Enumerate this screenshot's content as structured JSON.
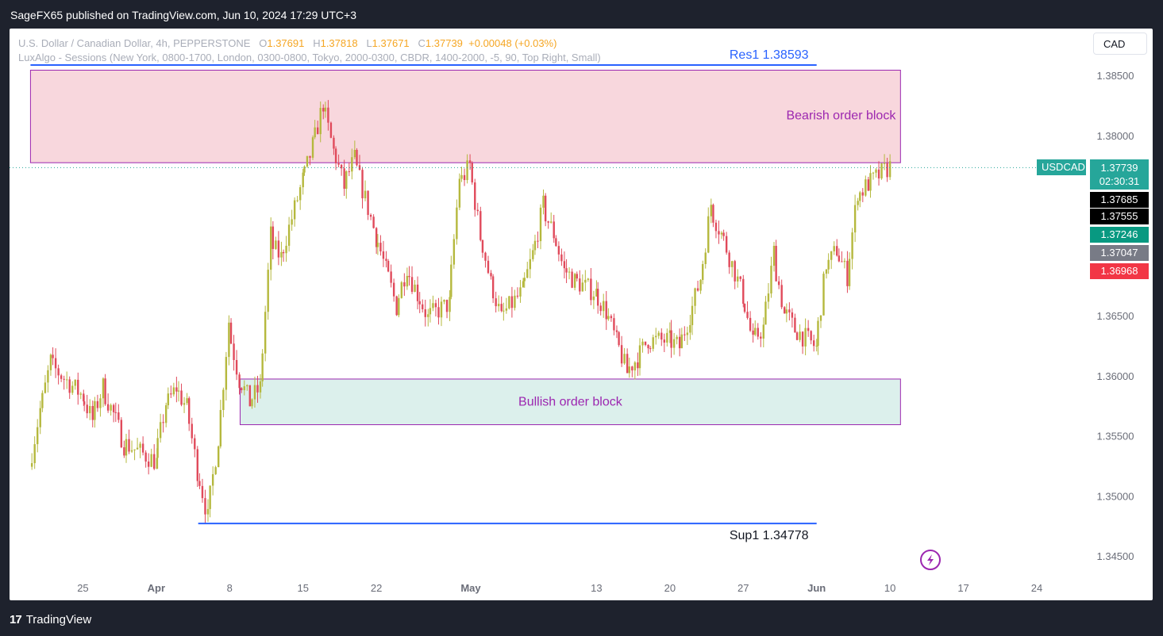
{
  "header": {
    "published": "SageFX65 published on TradingView.com, Jun 10, 2024 17:29 UTC+3"
  },
  "legend": {
    "symbol_line": "U.S. Dollar / Canadian Dollar, 4h, PEPPERSTONE",
    "o_label": "O",
    "o_value": "1.37691",
    "h_label": "H",
    "h_value": "1.37818",
    "l_label": "L",
    "l_value": "1.37671",
    "c_label": "C",
    "c_value": "1.37739",
    "change": "+0.00048 (+0.03%)",
    "indicator_line": "LuxAlgo - Sessions (New York, 0800-1700, London, 0300-0800, Tokyo, 2000-0300, CBDR, 1400-2000, -5, 90, Top Right, Small)"
  },
  "currency_button": "CAD",
  "footer": {
    "brand": "TradingView",
    "brand_mark": "17"
  },
  "colors": {
    "up": "#b5b83d",
    "down": "#e04a5b",
    "bearish_zone": "#f8d7dd",
    "bullish_zone": "#dcf0ec",
    "zone_border": "#9c27b0",
    "level_line": "#2962ff",
    "price_badge": "#26a69a"
  },
  "chart_data": {
    "type": "candlestick",
    "symbol": "USDCAD",
    "timeframe": "4h",
    "y_ticks": [
      "1.38500",
      "1.38000",
      "1.37500",
      "1.37000",
      "1.36500",
      "1.36000",
      "1.35500",
      "1.35000",
      "1.34500"
    ],
    "y_tick_values": [
      1.385,
      1.38,
      1.375,
      1.37,
      1.365,
      1.36,
      1.355,
      1.35,
      1.345
    ],
    "ylim": [
      1.3433,
      1.3887
    ],
    "x_ticks": [
      "25",
      "Apr",
      "8",
      "15",
      "22",
      "May",
      "13",
      "20",
      "27",
      "Jun",
      "10",
      "17",
      "24"
    ],
    "x_tick_dates": [
      "2024-03-25",
      "2024-04-01",
      "2024-04-08",
      "2024-04-15",
      "2024-04-22",
      "2024-05-01",
      "2024-05-13",
      "2024-05-20",
      "2024-05-27",
      "2024-06-03",
      "2024-06-10",
      "2024-06-17",
      "2024-06-24"
    ],
    "zones": [
      {
        "label": "Bearish order block",
        "top": 1.3855,
        "bottom": 1.3778,
        "start": "2024-03-20",
        "end": "2024-06-11"
      },
      {
        "label": "Bullish order block",
        "top": 1.3598,
        "bottom": 1.356,
        "start": "2024-04-09",
        "end": "2024-06-11"
      }
    ],
    "levels": [
      {
        "label": "Res1 1.38593",
        "value": 1.38593,
        "start": "2024-03-20",
        "end": "2024-06-03"
      },
      {
        "label": "Sup1 1.34778",
        "value": 1.34778,
        "start": "2024-04-05",
        "end": "2024-06-03"
      }
    ],
    "current_price": {
      "symbol": "USDCAD",
      "value": "1.37739",
      "countdown": "02:30:31"
    },
    "price_labels": [
      {
        "value": "1.37685",
        "color": "#000000"
      },
      {
        "value": "1.37555",
        "color": "#000000"
      },
      {
        "value": "1.37246",
        "color": "#089981"
      },
      {
        "value": "1.37047",
        "color": "#787b86"
      },
      {
        "value": "1.36968",
        "color": "#f23645"
      }
    ],
    "path": [
      [
        "2024-03-20",
        1.3525
      ],
      [
        "2024-03-21",
        1.357
      ],
      [
        "2024-03-22",
        1.361
      ],
      [
        "2024-03-25",
        1.3585
      ],
      [
        "2024-03-26",
        1.3565
      ],
      [
        "2024-03-27",
        1.359
      ],
      [
        "2024-03-28",
        1.357
      ],
      [
        "2024-03-29",
        1.3545
      ],
      [
        "2024-04-01",
        1.353
      ],
      [
        "2024-04-02",
        1.3575
      ],
      [
        "2024-04-03",
        1.359
      ],
      [
        "2024-04-04",
        1.3575
      ],
      [
        "2024-04-05",
        1.3525
      ],
      [
        "2024-04-06",
        1.3485
      ],
      [
        "2024-04-07",
        1.3545
      ],
      [
        "2024-04-08",
        1.364
      ],
      [
        "2024-04-09",
        1.36
      ],
      [
        "2024-04-10",
        1.358
      ],
      [
        "2024-04-11",
        1.359
      ],
      [
        "2024-04-12",
        1.371
      ],
      [
        "2024-04-13",
        1.37
      ],
      [
        "2024-04-15",
        1.376
      ],
      [
        "2024-04-16",
        1.379
      ],
      [
        "2024-04-17",
        1.3825
      ],
      [
        "2024-04-18",
        1.379
      ],
      [
        "2024-04-19",
        1.376
      ],
      [
        "2024-04-20",
        1.378
      ],
      [
        "2024-04-22",
        1.372
      ],
      [
        "2024-04-23",
        1.369
      ],
      [
        "2024-04-24",
        1.366
      ],
      [
        "2024-04-25",
        1.369
      ],
      [
        "2024-04-26",
        1.367
      ],
      [
        "2024-04-27",
        1.365
      ],
      [
        "2024-04-29",
        1.366
      ],
      [
        "2024-04-30",
        1.376
      ],
      [
        "2024-05-01",
        1.3775
      ],
      [
        "2024-05-02",
        1.372
      ],
      [
        "2024-05-03",
        1.368
      ],
      [
        "2024-05-04",
        1.365
      ],
      [
        "2024-05-06",
        1.367
      ],
      [
        "2024-05-07",
        1.37
      ],
      [
        "2024-05-08",
        1.374
      ],
      [
        "2024-05-09",
        1.372
      ],
      [
        "2024-05-10",
        1.369
      ],
      [
        "2024-05-11",
        1.368
      ],
      [
        "2024-05-13",
        1.367
      ],
      [
        "2024-05-14",
        1.3655
      ],
      [
        "2024-05-15",
        1.363
      ],
      [
        "2024-05-16",
        1.3605
      ],
      [
        "2024-05-17",
        1.3615
      ],
      [
        "2024-05-18",
        1.363
      ],
      [
        "2024-05-20",
        1.363
      ],
      [
        "2024-05-21",
        1.3625
      ],
      [
        "2024-05-22",
        1.365
      ],
      [
        "2024-05-23",
        1.368
      ],
      [
        "2024-05-24",
        1.374
      ],
      [
        "2024-05-25",
        1.372
      ],
      [
        "2024-05-27",
        1.367
      ],
      [
        "2024-05-28",
        1.363
      ],
      [
        "2024-05-29",
        1.364
      ],
      [
        "2024-05-30",
        1.37
      ],
      [
        "2024-05-31",
        1.3655
      ],
      [
        "2024-06-01",
        1.364
      ],
      [
        "2024-06-03",
        1.3625
      ],
      [
        "2024-06-04",
        1.369
      ],
      [
        "2024-06-05",
        1.3705
      ],
      [
        "2024-06-06",
        1.3685
      ],
      [
        "2024-06-07",
        1.375
      ],
      [
        "2024-06-08",
        1.376
      ],
      [
        "2024-06-10",
        1.37739
      ]
    ],
    "candles_per_day": 6
  }
}
